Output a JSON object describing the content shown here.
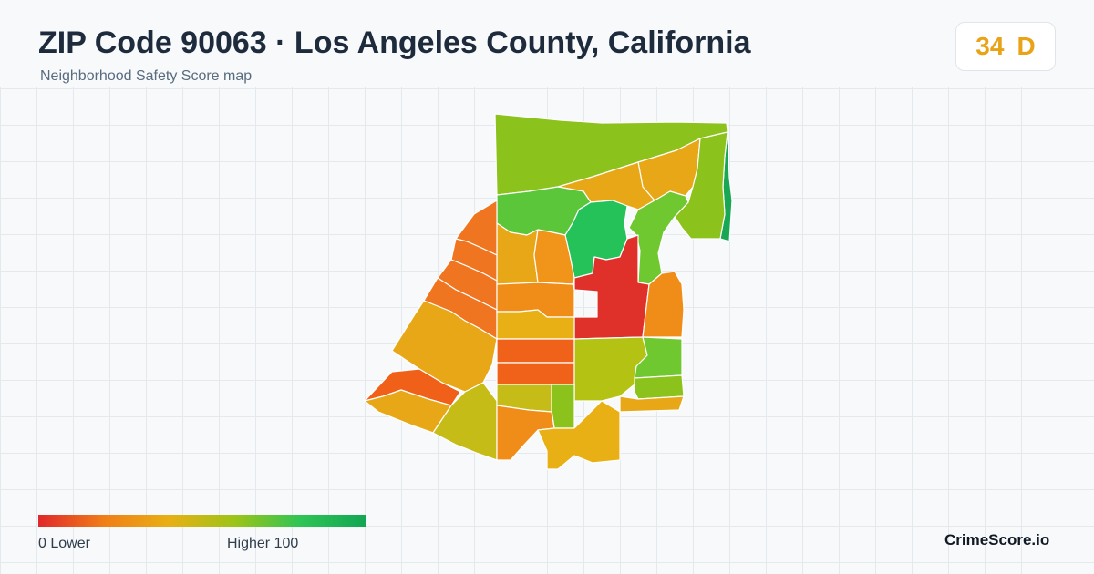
{
  "header": {
    "title": "ZIP Code 90063 · Los Angeles County, California",
    "subtitle": "Neighborhood Safety Score map"
  },
  "score": {
    "value": "34",
    "grade": "D",
    "color": "#e8a317"
  },
  "legend": {
    "low_label": "0  Lower",
    "high_label": "Higher  100",
    "min": 0,
    "max": 100,
    "colors": [
      "#e0282a",
      "#f07e18",
      "#e8b014",
      "#9cc418",
      "#2ec455",
      "#13a653"
    ]
  },
  "brand": "CrimeScore.io"
}
